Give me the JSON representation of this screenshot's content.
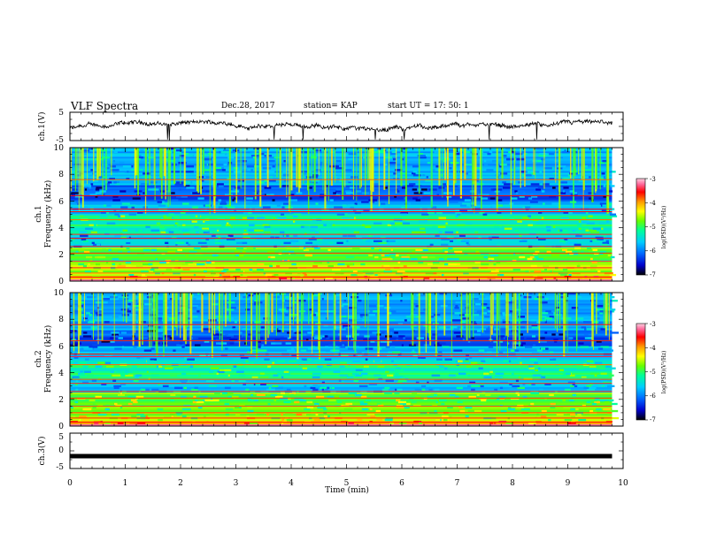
{
  "header": {
    "title": "VLF Spectra",
    "date": "Dec.28, 2017",
    "station": "station= KAP",
    "start_ut": "start  UT =   17: 50: 1"
  },
  "chart_data": [
    {
      "id": "ch1-waveform",
      "type": "line",
      "ylabel": "ch.1(V)",
      "ylim": [
        -5,
        5
      ],
      "yticks": [
        "5",
        "-5"
      ],
      "xlim": [
        0,
        10
      ],
      "description": "noisy waveform around ~ -1 V"
    },
    {
      "id": "ch1-spectrogram",
      "type": "heatmap",
      "ylabel_line1": "ch.1",
      "ylabel_line2": "Frequency (kHz)",
      "ylim": [
        0,
        10
      ],
      "yticks": [
        "0",
        "2",
        "4",
        "6",
        "8",
        "10"
      ],
      "xlim": [
        0,
        10
      ],
      "data_end_min": 9.8
    },
    {
      "id": "ch2-spectrogram",
      "type": "heatmap",
      "ylabel_line1": "ch.2",
      "ylabel_line2": "Frequency (kHz)",
      "ylim": [
        0,
        10
      ],
      "yticks": [
        "0",
        "2",
        "4",
        "6",
        "8",
        "10"
      ],
      "xlim": [
        0,
        10
      ],
      "data_end_min": 9.8
    },
    {
      "id": "ch3-waveform",
      "type": "line",
      "ylabel": "ch.3(V)",
      "ylim": [
        -5,
        5
      ],
      "yticks": [
        "5",
        "0",
        "-5"
      ],
      "xlim": [
        0,
        10
      ],
      "xlabel": "Time  (min)",
      "xticks": [
        "0",
        "1",
        "2",
        "3",
        "4",
        "5",
        "6",
        "7",
        "8",
        "9",
        "10"
      ],
      "constant_value": -1.5
    }
  ],
  "colorbar": {
    "label": "log(PSD)(V²/Hz)",
    "ticks": [
      "-3",
      "-4",
      "-5",
      "-6",
      "-7"
    ],
    "range": [
      -7,
      -3
    ],
    "colors": [
      "#000000",
      "#0000cc",
      "#0066ff",
      "#00ccff",
      "#00ff99",
      "#66ff00",
      "#ffff00",
      "#ff9900",
      "#ff0000",
      "#ff6699",
      "#ffd0e0"
    ]
  }
}
